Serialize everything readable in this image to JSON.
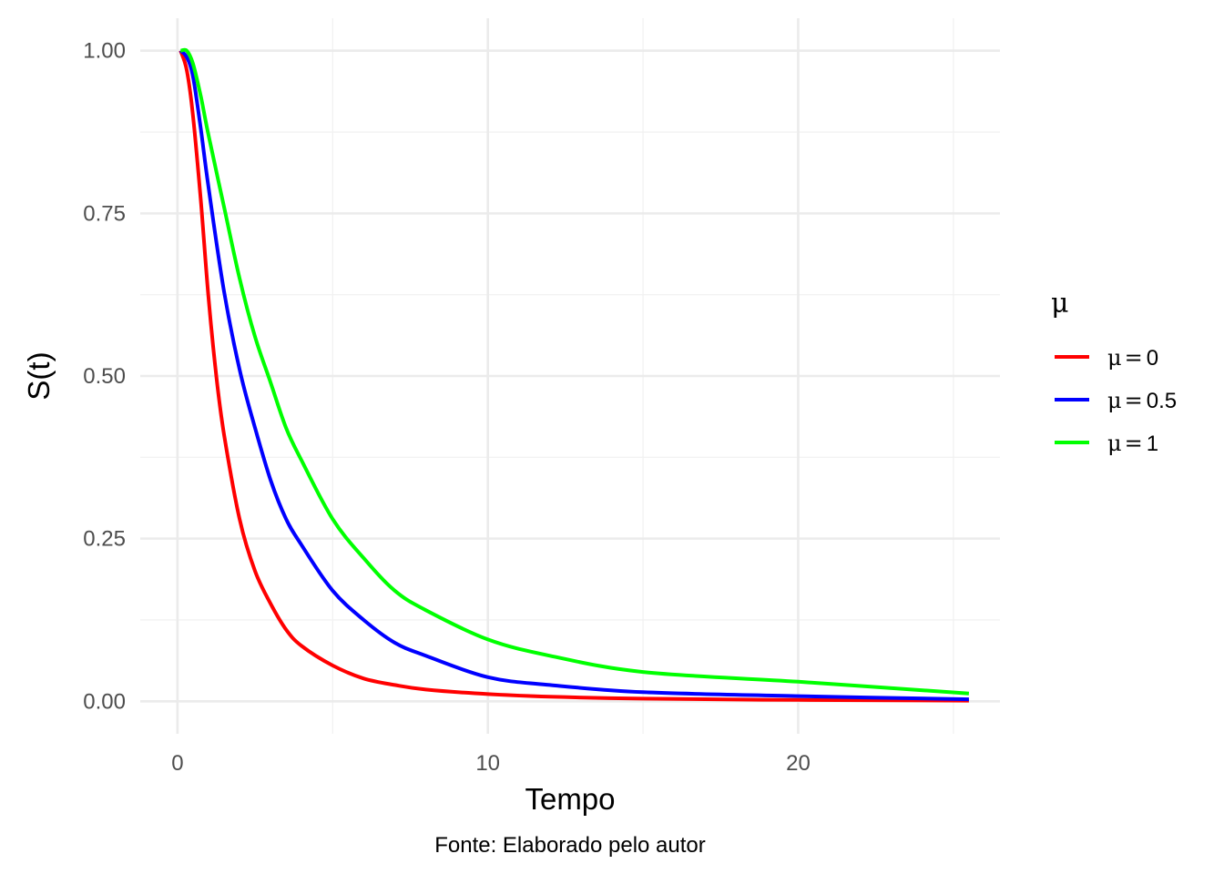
{
  "chart_data": {
    "type": "line",
    "xlabel": "Tempo",
    "ylabel": "S(t)",
    "caption": "Fonte: Elaborado pelo autor",
    "xlim": [
      -1.2,
      26.5
    ],
    "ylim": [
      -0.05,
      1.05
    ],
    "x_ticks": [
      0,
      10,
      20
    ],
    "x_tick_labels": [
      "0",
      "10",
      "20"
    ],
    "x_minor_ticks": [
      5,
      15,
      25
    ],
    "y_ticks": [
      0,
      0.25,
      0.5,
      0.75,
      1
    ],
    "y_tick_labels": [
      "0.00",
      "0.25",
      "0.50",
      "0.75",
      "1.00"
    ],
    "y_minor_ticks": [
      0.125,
      0.375,
      0.625,
      0.875
    ],
    "grid": true,
    "legend": {
      "title": "μ",
      "position": "right",
      "entries": [
        {
          "prefix": "μ",
          "eq": "=",
          "value": "0",
          "color": "#ff0000"
        },
        {
          "prefix": "μ",
          "eq": "=",
          "value": "0.5",
          "color": "#0000ff"
        },
        {
          "prefix": "μ",
          "eq": "=",
          "value": "1",
          "color": "#00ff00"
        }
      ]
    },
    "series": [
      {
        "name": "μ = 0",
        "color": "#ff0000",
        "x": [
          0.1,
          0.3,
          0.5,
          0.75,
          1.0,
          1.25,
          1.5,
          2.0,
          2.5,
          3.0,
          3.5,
          4.0,
          5.0,
          6.0,
          7.0,
          8.0,
          10.0,
          12.0,
          15.0,
          20.0,
          25.5
        ],
        "y": [
          1.0,
          0.97,
          0.9,
          0.77,
          0.62,
          0.5,
          0.41,
          0.28,
          0.2,
          0.15,
          0.11,
          0.085,
          0.055,
          0.035,
          0.025,
          0.018,
          0.011,
          0.007,
          0.004,
          0.002,
          0.001
        ]
      },
      {
        "name": "μ = 0.5",
        "color": "#0000ff",
        "x": [
          0.1,
          0.3,
          0.5,
          0.75,
          1.0,
          1.5,
          2.0,
          2.5,
          3.0,
          3.5,
          4.0,
          5.0,
          6.0,
          7.0,
          8.0,
          10.0,
          12.0,
          15.0,
          20.0,
          25.5
        ],
        "y": [
          1.0,
          0.99,
          0.96,
          0.88,
          0.79,
          0.63,
          0.51,
          0.42,
          0.34,
          0.28,
          0.24,
          0.17,
          0.125,
          0.09,
          0.07,
          0.037,
          0.025,
          0.014,
          0.008,
          0.003
        ]
      },
      {
        "name": "μ = 1",
        "color": "#00ff00",
        "x": [
          0.1,
          0.3,
          0.5,
          0.75,
          1.0,
          1.5,
          2.0,
          2.5,
          3.0,
          3.5,
          4.0,
          5.0,
          6.0,
          7.0,
          8.0,
          10.0,
          12.0,
          15.0,
          20.0,
          25.5
        ],
        "y": [
          1.0,
          1.0,
          0.98,
          0.93,
          0.87,
          0.76,
          0.65,
          0.56,
          0.49,
          0.42,
          0.37,
          0.28,
          0.22,
          0.17,
          0.14,
          0.095,
          0.07,
          0.045,
          0.03,
          0.012
        ]
      }
    ]
  }
}
